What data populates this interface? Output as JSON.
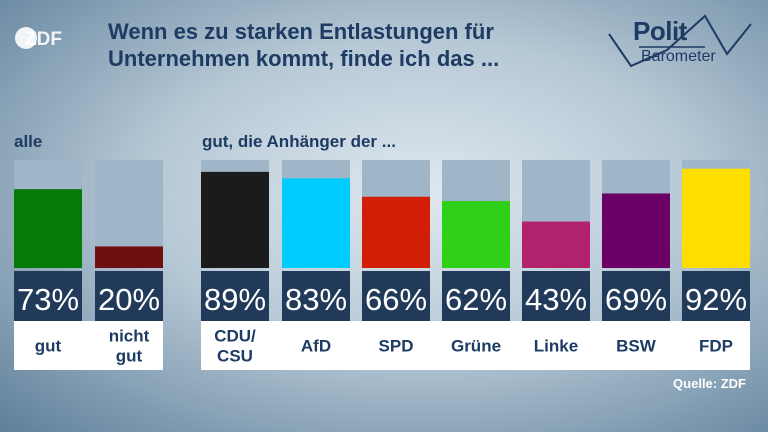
{
  "brand": {
    "logo_text": "ZDF",
    "polit_word": "Polit",
    "barometer_word": "Barometer"
  },
  "title_lines": [
    "Wenn es zu starken Entlastungen für",
    "Unternehmen kommt, finde ich das ..."
  ],
  "group_labels": {
    "left": "alle",
    "right": "gut, die Anhänger der ..."
  },
  "source": "Quelle: ZDF",
  "colors": {
    "title": "#1d3b63",
    "track": "#9fb6c8",
    "percent_box": "#223a5a",
    "label_box": "#ffffff"
  },
  "chart_data": {
    "type": "bar",
    "ylim": [
      0,
      100
    ],
    "bars": [
      {
        "label": [
          "gut"
        ],
        "value": 73,
        "display": "73%",
        "color": "#067a06"
      },
      {
        "label": [
          "nicht",
          "gut"
        ],
        "value": 20,
        "display": "20%",
        "color": "#6e0f12"
      },
      {
        "label": [
          "CDU/",
          "CSU"
        ],
        "value": 89,
        "display": "89%",
        "color": "#1b1b1b"
      },
      {
        "label": [
          "AfD"
        ],
        "value": 83,
        "display": "83%",
        "color": "#00ccff"
      },
      {
        "label": [
          "SPD"
        ],
        "value": 66,
        "display": "66%",
        "color": "#d21e06"
      },
      {
        "label": [
          "Grüne"
        ],
        "value": 62,
        "display": "62%",
        "color": "#2fd018"
      },
      {
        "label": [
          "Linke"
        ],
        "value": 43,
        "display": "43%",
        "color": "#b2226c"
      },
      {
        "label": [
          "BSW"
        ],
        "value": 69,
        "display": "69%",
        "color": "#6b0066"
      },
      {
        "label": [
          "FDP"
        ],
        "value": 92,
        "display": "92%",
        "color": "#fede00"
      }
    ]
  }
}
